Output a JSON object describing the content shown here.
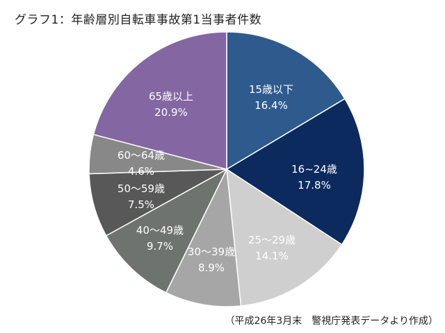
{
  "chart_data": {
    "type": "pie",
    "title": "グラフ1：年齢層別自転車事故第1当事者件数",
    "source_note": "（平成26年3月末　警視庁発表データより作成）",
    "slices": [
      {
        "label": "15歳以下",
        "value_label": "16.4%",
        "value": 16.4,
        "color": "#2e5a8e"
      },
      {
        "label": "16~24歳",
        "value_label": "17.8%",
        "value": 17.8,
        "color": "#0c2a5e"
      },
      {
        "label": "25〜29歳",
        "value_label": "14.1%",
        "value": 14.1,
        "color": "#cfcfcf"
      },
      {
        "label": "30〜39歳",
        "value_label": "8.9%",
        "value": 8.9,
        "color": "#a6a6a6"
      },
      {
        "label": "40〜49歳",
        "value_label": "9.7%",
        "value": 9.7,
        "color": "#6e736f"
      },
      {
        "label": "50〜59歳",
        "value_label": "7.5%",
        "value": 7.5,
        "color": "#585858"
      },
      {
        "label": "60〜64歳",
        "value_label": "4.6%",
        "value": 4.6,
        "color": "#888888"
      },
      {
        "label": "65歳以上",
        "value_label": "20.9%",
        "value": 20.9,
        "color": "#8466a3"
      }
    ]
  }
}
